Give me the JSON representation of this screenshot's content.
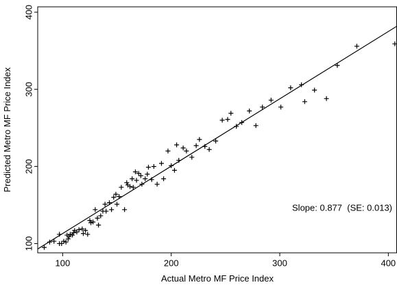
{
  "chart_data": {
    "type": "scatter",
    "x_label": "Actual Metro MF Price Index",
    "y_label": "Predicted Metro MF Price Index",
    "annotation": "Slope: 0.877  (SE: 0.013)",
    "color": "#000000",
    "xlim": [
      77,
      408
    ],
    "ylim": [
      88,
      407
    ],
    "xticks": [
      100,
      200,
      300,
      400
    ],
    "yticks": [
      100,
      200,
      300,
      400
    ],
    "x": [
      83,
      88,
      92,
      97,
      97,
      99,
      101,
      103,
      104,
      105,
      106,
      107,
      109,
      110,
      111,
      113,
      115,
      118,
      119,
      121,
      123,
      125,
      126,
      128,
      130,
      132,
      133,
      135,
      137,
      139,
      140,
      143,
      145,
      147,
      149,
      150,
      152,
      154,
      157,
      159,
      160,
      162,
      164,
      165,
      167,
      168,
      170,
      172,
      173,
      176,
      178,
      179,
      182,
      184,
      187,
      191,
      193,
      197,
      200,
      203,
      205,
      207,
      211,
      214,
      219,
      223,
      226,
      231,
      235,
      241,
      247,
      252,
      255,
      260,
      265,
      272,
      278,
      284,
      292,
      301,
      310,
      320,
      323,
      332,
      343,
      353,
      371,
      406
    ],
    "values": [
      95,
      102,
      103,
      100,
      112,
      100,
      103,
      102,
      111,
      106,
      109,
      112,
      111,
      114,
      117,
      115,
      118,
      119,
      113,
      117,
      112,
      130,
      127,
      128,
      144,
      133,
      124,
      136,
      142,
      151,
      142,
      153,
      144,
      160,
      164,
      151,
      161,
      173,
      144,
      179,
      176,
      174,
      184,
      173,
      193,
      182,
      191,
      188,
      177,
      184,
      190,
      199,
      183,
      200,
      177,
      204,
      184,
      220,
      201,
      195,
      228,
      208,
      224,
      220,
      212,
      227,
      235,
      226,
      222,
      233,
      260,
      261,
      269,
      252,
      257,
      272,
      253,
      277,
      286,
      277,
      302,
      306,
      284,
      299,
      288,
      331,
      356,
      359
    ],
    "fit_line": {
      "x": [
        77,
        408
      ],
      "values": [
        93,
        382
      ]
    }
  }
}
